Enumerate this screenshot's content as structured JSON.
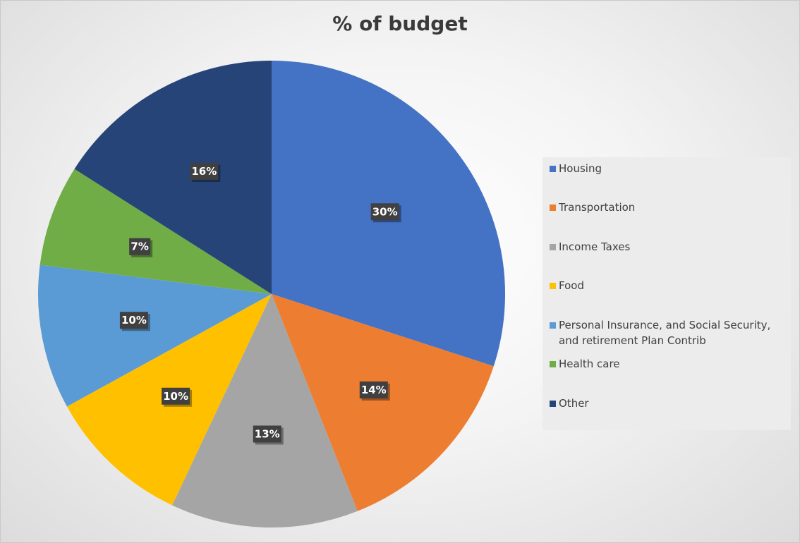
{
  "chart_data": {
    "type": "pie",
    "title": "% of budget",
    "legend_position": "right",
    "categories": [
      "Housing",
      "Transportation",
      "Income Taxes",
      "Food",
      "Personal Insurance, and Social Security, and retirement Plan Contrib",
      "Health care",
      "Other"
    ],
    "values": [
      30,
      14,
      13,
      10,
      10,
      7,
      16
    ],
    "data_labels": [
      "30%",
      "14%",
      "13%",
      "10%",
      "10%",
      "7%",
      "16%"
    ],
    "colors": [
      "#4472c4",
      "#ed7d31",
      "#a5a5a5",
      "#ffc000",
      "#5b9bd5",
      "#70ad47",
      "#264478"
    ]
  }
}
